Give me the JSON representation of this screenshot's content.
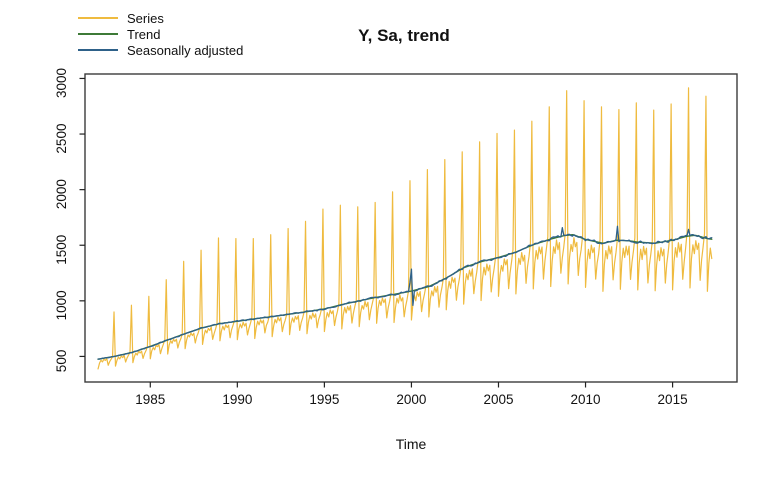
{
  "chart_data": {
    "type": "line",
    "title": "Y, Sa, trend",
    "xlabel": "Time",
    "ylabel": "",
    "x_ticks": [
      1985,
      1990,
      1995,
      2000,
      2005,
      2010,
      2015
    ],
    "y_ticks": [
      500,
      1000,
      1500,
      2000,
      2500,
      3000
    ],
    "xlim": [
      1981.25,
      2018.7
    ],
    "ylim": [
      270,
      3040
    ],
    "grid": false,
    "legend_position": "top-left",
    "frequency": 12,
    "x_start": 1982.0,
    "n_points": 424,
    "legend": [
      {
        "label": "Series",
        "color": "#EFBB3F"
      },
      {
        "label": "Trend",
        "color": "#3D7A37"
      },
      {
        "label": "Seasonally adjusted",
        "color": "#2E6189"
      }
    ],
    "trend_anchors": [
      [
        1982,
        475
      ],
      [
        1983,
        502
      ],
      [
        1984,
        538
      ],
      [
        1985,
        590
      ],
      [
        1986,
        648
      ],
      [
        1987,
        705
      ],
      [
        1988,
        758
      ],
      [
        1989,
        795
      ],
      [
        1990,
        816
      ],
      [
        1991,
        838
      ],
      [
        1992,
        858
      ],
      [
        1993,
        880
      ],
      [
        1994,
        903
      ],
      [
        1995,
        927
      ],
      [
        1996,
        966
      ],
      [
        1997,
        1000
      ],
      [
        1998,
        1032
      ],
      [
        1999,
        1058
      ],
      [
        2000,
        1088
      ],
      [
        2001,
        1128
      ],
      [
        2002,
        1205
      ],
      [
        2003,
        1298
      ],
      [
        2004,
        1352
      ],
      [
        2005,
        1390
      ],
      [
        2006,
        1438
      ],
      [
        2007,
        1505
      ],
      [
        2008,
        1555
      ],
      [
        2008.8,
        1588
      ],
      [
        2009.3,
        1595
      ],
      [
        2010,
        1552
      ],
      [
        2011,
        1518
      ],
      [
        2011.8,
        1545
      ],
      [
        2012.5,
        1540
      ],
      [
        2013,
        1528
      ],
      [
        2014,
        1518
      ],
      [
        2015,
        1545
      ],
      [
        2015.8,
        1580
      ],
      [
        2016.3,
        1590
      ],
      [
        2017,
        1560
      ],
      [
        2017.33,
        1552
      ]
    ],
    "seasonal_dev": [
      -0.22,
      -0.1,
      -0.04,
      -0.08,
      -0.02,
      -0.06,
      -0.03,
      -0.18,
      -0.1,
      -0.05,
      0.01
    ],
    "seasonal_amp": [
      0.8,
      1.35
    ],
    "december_peaks": {
      "1982": 900,
      "1983": 960,
      "1984": 1040,
      "1985": 1190,
      "1986": 1355,
      "1987": 1455,
      "1988": 1565,
      "1989": 1560,
      "1990": 1560,
      "1991": 1595,
      "1992": 1650,
      "1993": 1715,
      "1994": 1825,
      "1995": 1860,
      "1996": 1845,
      "1997": 1885,
      "1998": 1980,
      "1999": 2080,
      "2000": 2180,
      "2001": 2270,
      "2002": 2340,
      "2003": 2430,
      "2004": 2505,
      "2005": 2535,
      "2006": 2615,
      "2007": 2745,
      "2008": 2890,
      "2009": 2800,
      "2010": 2745,
      "2011": 2720,
      "2012": 2780,
      "2013": 2715,
      "2014": 2770,
      "2015": 2915,
      "2016": 2840
    },
    "sa_anomalies": [
      [
        1999.917,
        80
      ],
      [
        2000.0,
        195
      ],
      [
        2000.083,
        -130
      ],
      [
        2008.667,
        70
      ],
      [
        2011.833,
        130
      ],
      [
        2015.917,
        60
      ]
    ],
    "noise": {
      "series_rel": 0.022,
      "sa_rel": 0.016
    },
    "colors": {
      "axis": "#3b3b3b",
      "text": "#111111",
      "background": "#ffffff"
    }
  }
}
